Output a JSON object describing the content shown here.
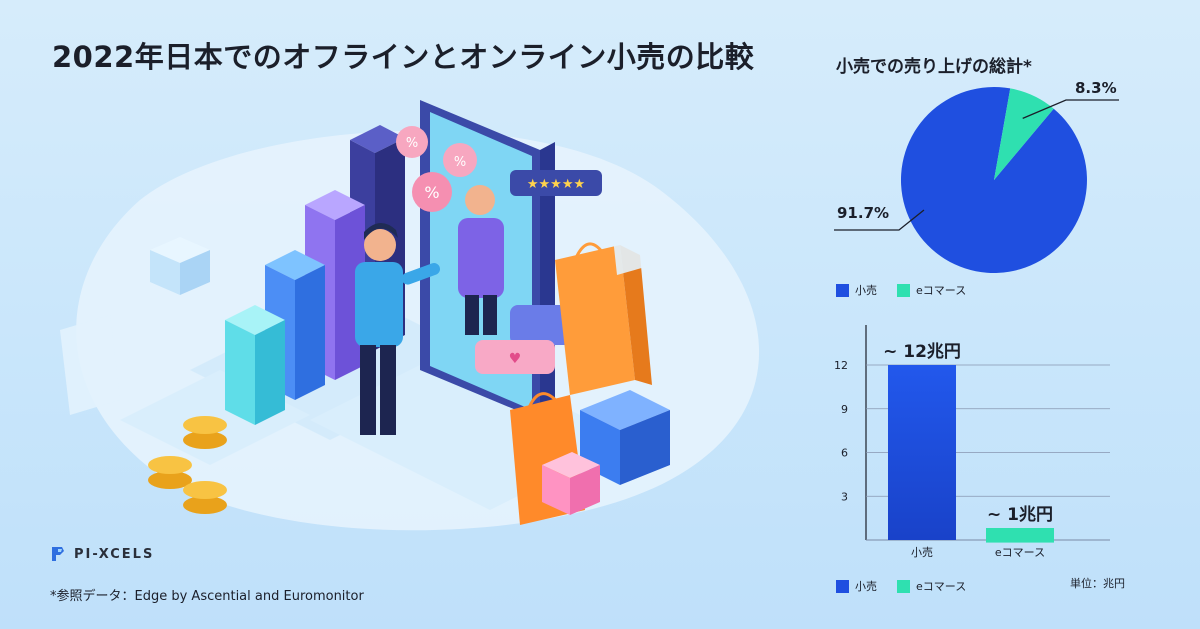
{
  "title": "2022年日本でのオフラインとオンライン小売の比較",
  "logo": {
    "text": "PI-XCELS"
  },
  "source": "*参照データ：Edge by Ascential and Euromonitor",
  "colors": {
    "retail": "#1f4fe0",
    "ecommerce": "#2fe0b0"
  },
  "chart_data": [
    {
      "type": "pie",
      "title": "小売での売り上げの総計*",
      "slices": [
        {
          "label": "小売",
          "value": 91.7,
          "display": "91.7%"
        },
        {
          "label": "eコマース",
          "value": 8.3,
          "display": "8.3%"
        }
      ],
      "legend": [
        "小売",
        "eコマース"
      ],
      "legend_position": "bottom-left"
    },
    {
      "type": "bar",
      "categories": [
        "小売",
        "eコマース"
      ],
      "values": [
        12,
        1
      ],
      "data_labels": [
        "~ 12兆円",
        "~ 1兆円"
      ],
      "ylim": [
        0,
        12
      ],
      "yticks": [
        3,
        6,
        9,
        12
      ],
      "grid": true,
      "legend": [
        "小売",
        "eコマース"
      ],
      "legend_position": "bottom-left",
      "unit_label": "単位：兆円"
    }
  ]
}
